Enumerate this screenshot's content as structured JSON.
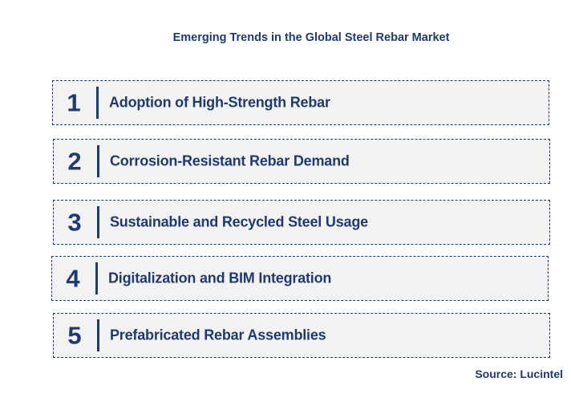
{
  "title": "Emerging Trends in the Global Steel Rebar Market",
  "items": [
    {
      "number": "1",
      "label": "Adoption of High-Strength Rebar"
    },
    {
      "number": "2",
      "label": "Corrosion-Resistant Rebar Demand"
    },
    {
      "number": "3",
      "label": "Sustainable and Recycled Steel Usage"
    },
    {
      "number": "4",
      "label": "Digitalization and BIM Integration"
    },
    {
      "number": "5",
      "label": "Prefabricated Rebar Assemblies"
    }
  ],
  "source": "Source: Lucintel",
  "colors": {
    "text": "#1f3a6e",
    "box_fill": "#f2f2f2",
    "box_border": "#1f3a6e"
  }
}
